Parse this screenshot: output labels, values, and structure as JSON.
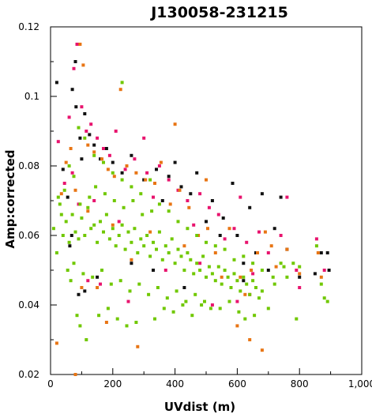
{
  "chart_data": {
    "type": "scatter",
    "title": "J130058-231215",
    "xlabel": "UVdist (m)",
    "ylabel": "Amp:corrected",
    "xlim": [
      0,
      1000
    ],
    "ylim": [
      0.02,
      0.12
    ],
    "xticks": [
      0,
      200,
      400,
      600,
      800,
      1000
    ],
    "xtick_labels": [
      "0",
      "200",
      "400",
      "600",
      "800",
      "1,000"
    ],
    "yticks": [
      0.02,
      0.04,
      0.06,
      0.08,
      0.1,
      0.12
    ],
    "ytick_labels": [
      "0.02",
      "0.04",
      "0.06",
      "0.08",
      "0.1",
      "0.12"
    ],
    "grid": false,
    "series": [
      {
        "color": "#111111",
        "points": [
          [
            20,
            0.104
          ],
          [
            40,
            0.079
          ],
          [
            55,
            0.071
          ],
          [
            70,
            0.102
          ],
          [
            82,
            0.097
          ],
          [
            95,
            0.088
          ],
          [
            110,
            0.095
          ],
          [
            125,
            0.089
          ],
          [
            140,
            0.086
          ],
          [
            160,
            0.082
          ],
          [
            180,
            0.085
          ],
          [
            200,
            0.081
          ],
          [
            230,
            0.078
          ],
          [
            260,
            0.083
          ],
          [
            300,
            0.076
          ],
          [
            340,
            0.079
          ],
          [
            360,
            0.07
          ],
          [
            380,
            0.077
          ],
          [
            400,
            0.081
          ],
          [
            420,
            0.074
          ],
          [
            450,
            0.072
          ],
          [
            470,
            0.078
          ],
          [
            500,
            0.064
          ],
          [
            520,
            0.07
          ],
          [
            555,
            0.065
          ],
          [
            585,
            0.075
          ],
          [
            620,
            0.052
          ],
          [
            640,
            0.068
          ],
          [
            660,
            0.055
          ],
          [
            680,
            0.072
          ],
          [
            700,
            0.05
          ],
          [
            720,
            0.062
          ],
          [
            740,
            0.071
          ],
          [
            760,
            0.056
          ],
          [
            800,
            0.048
          ],
          [
            850,
            0.049
          ],
          [
            870,
            0.055
          ],
          [
            890,
            0.055
          ],
          [
            895,
            0.05
          ],
          [
            110,
            0.044
          ],
          [
            90,
            0.043
          ],
          [
            150,
            0.048
          ],
          [
            260,
            0.052
          ],
          [
            330,
            0.05
          ],
          [
            430,
            0.045
          ],
          [
            620,
            0.047
          ],
          [
            600,
            0.06
          ],
          [
            545,
            0.06
          ],
          [
            80,
            0.11
          ],
          [
            100,
            0.082
          ],
          [
            68,
            0.06
          ],
          [
            62,
            0.057
          ]
        ]
      },
      {
        "color": "#e8146e",
        "points": [
          [
            25,
            0.087
          ],
          [
            45,
            0.075
          ],
          [
            60,
            0.094
          ],
          [
            75,
            0.108
          ],
          [
            85,
            0.115
          ],
          [
            100,
            0.097
          ],
          [
            115,
            0.09
          ],
          [
            130,
            0.092
          ],
          [
            150,
            0.088
          ],
          [
            170,
            0.085
          ],
          [
            190,
            0.083
          ],
          [
            210,
            0.09
          ],
          [
            240,
            0.079
          ],
          [
            270,
            0.082
          ],
          [
            310,
            0.078
          ],
          [
            350,
            0.08
          ],
          [
            380,
            0.076
          ],
          [
            410,
            0.073
          ],
          [
            440,
            0.07
          ],
          [
            460,
            0.063
          ],
          [
            480,
            0.072
          ],
          [
            510,
            0.068
          ],
          [
            540,
            0.066
          ],
          [
            560,
            0.059
          ],
          [
            590,
            0.062
          ],
          [
            610,
            0.071
          ],
          [
            630,
            0.058
          ],
          [
            650,
            0.049
          ],
          [
            670,
            0.061
          ],
          [
            700,
            0.055
          ],
          [
            740,
            0.06
          ],
          [
            760,
            0.071
          ],
          [
            790,
            0.05
          ],
          [
            800,
            0.045
          ],
          [
            855,
            0.059
          ],
          [
            880,
            0.05
          ],
          [
            600,
            0.041
          ],
          [
            640,
            0.043
          ],
          [
            520,
            0.04
          ],
          [
            370,
            0.05
          ],
          [
            250,
            0.041
          ],
          [
            160,
            0.046
          ],
          [
            120,
            0.047
          ],
          [
            70,
            0.078
          ],
          [
            300,
            0.088
          ],
          [
            330,
            0.071
          ],
          [
            480,
            0.052
          ],
          [
            220,
            0.064
          ],
          [
            140,
            0.07
          ],
          [
            90,
            0.069
          ]
        ]
      },
      {
        "color": "#e87514",
        "points": [
          [
            20,
            0.029
          ],
          [
            35,
            0.072
          ],
          [
            50,
            0.081
          ],
          [
            65,
            0.085
          ],
          [
            80,
            0.02
          ],
          [
            95,
            0.115
          ],
          [
            105,
            0.109
          ],
          [
            120,
            0.086
          ],
          [
            140,
            0.084
          ],
          [
            165,
            0.082
          ],
          [
            185,
            0.079
          ],
          [
            205,
            0.077
          ],
          [
            225,
            0.102
          ],
          [
            245,
            0.08
          ],
          [
            275,
            0.078
          ],
          [
            305,
            0.076
          ],
          [
            335,
            0.075
          ],
          [
            355,
            0.081
          ],
          [
            385,
            0.069
          ],
          [
            415,
            0.073
          ],
          [
            445,
            0.068
          ],
          [
            475,
            0.06
          ],
          [
            505,
            0.062
          ],
          [
            530,
            0.055
          ],
          [
            550,
            0.048
          ],
          [
            575,
            0.062
          ],
          [
            610,
            0.048
          ],
          [
            625,
            0.043
          ],
          [
            645,
            0.05
          ],
          [
            665,
            0.055
          ],
          [
            690,
            0.061
          ],
          [
            710,
            0.057
          ],
          [
            725,
            0.051
          ],
          [
            760,
            0.056
          ],
          [
            800,
            0.049
          ],
          [
            860,
            0.055
          ],
          [
            870,
            0.048
          ],
          [
            600,
            0.034
          ],
          [
            640,
            0.03
          ],
          [
            680,
            0.027
          ],
          [
            280,
            0.028
          ],
          [
            180,
            0.035
          ],
          [
            150,
            0.045
          ],
          [
            100,
            0.045
          ],
          [
            400,
            0.092
          ],
          [
            500,
            0.076
          ],
          [
            260,
            0.053
          ],
          [
            200,
            0.063
          ],
          [
            120,
            0.067
          ],
          [
            80,
            0.073
          ],
          [
            320,
            0.061
          ],
          [
            430,
            0.057
          ]
        ]
      },
      {
        "color": "#70c800",
        "points": [
          [
            10,
            0.062
          ],
          [
            20,
            0.055
          ],
          [
            30,
            0.069
          ],
          [
            40,
            0.06
          ],
          [
            50,
            0.064
          ],
          [
            60,
            0.058
          ],
          [
            70,
            0.066
          ],
          [
            80,
            0.061
          ],
          [
            90,
            0.059
          ],
          [
            100,
            0.065
          ],
          [
            110,
            0.06
          ],
          [
            120,
            0.068
          ],
          [
            130,
            0.062
          ],
          [
            140,
            0.063
          ],
          [
            150,
            0.058
          ],
          [
            160,
            0.064
          ],
          [
            170,
            0.061
          ],
          [
            180,
            0.066
          ],
          [
            190,
            0.059
          ],
          [
            200,
            0.062
          ],
          [
            210,
            0.057
          ],
          [
            220,
            0.06
          ],
          [
            230,
            0.063
          ],
          [
            240,
            0.056
          ],
          [
            250,
            0.061
          ],
          [
            260,
            0.058
          ],
          [
            270,
            0.062
          ],
          [
            280,
            0.055
          ],
          [
            290,
            0.059
          ],
          [
            300,
            0.057
          ],
          [
            310,
            0.06
          ],
          [
            320,
            0.054
          ],
          [
            330,
            0.058
          ],
          [
            340,
            0.056
          ],
          [
            350,
            0.061
          ],
          [
            360,
            0.053
          ],
          [
            370,
            0.057
          ],
          [
            380,
            0.055
          ],
          [
            390,
            0.059
          ],
          [
            400,
            0.052
          ],
          [
            410,
            0.056
          ],
          [
            420,
            0.054
          ],
          [
            430,
            0.05
          ],
          [
            440,
            0.055
          ],
          [
            450,
            0.053
          ],
          [
            460,
            0.049
          ],
          [
            470,
            0.052
          ],
          [
            480,
            0.05
          ],
          [
            490,
            0.054
          ],
          [
            500,
            0.048
          ],
          [
            510,
            0.051
          ],
          [
            520,
            0.049
          ],
          [
            530,
            0.047
          ],
          [
            540,
            0.051
          ],
          [
            550,
            0.046
          ],
          [
            560,
            0.05
          ],
          [
            570,
            0.048
          ],
          [
            580,
            0.045
          ],
          [
            590,
            0.049
          ],
          [
            600,
            0.047
          ],
          [
            610,
            0.044
          ],
          [
            620,
            0.048
          ],
          [
            630,
            0.046
          ],
          [
            640,
            0.043
          ],
          [
            650,
            0.047
          ],
          [
            660,
            0.045
          ],
          [
            670,
            0.042
          ],
          [
            680,
            0.044
          ],
          [
            700,
            0.039
          ],
          [
            720,
            0.046
          ],
          [
            740,
            0.052
          ],
          [
            760,
            0.048
          ],
          [
            780,
            0.052
          ],
          [
            790,
            0.036
          ],
          [
            800,
            0.051
          ],
          [
            855,
            0.057
          ],
          [
            870,
            0.046
          ],
          [
            880,
            0.042
          ],
          [
            890,
            0.041
          ],
          [
            95,
            0.069
          ],
          [
            125,
            0.071
          ],
          [
            145,
            0.074
          ],
          [
            175,
            0.072
          ],
          [
            205,
            0.07
          ],
          [
            235,
            0.068
          ],
          [
            265,
            0.07
          ],
          [
            295,
            0.066
          ],
          [
            325,
            0.067
          ],
          [
            85,
            0.037
          ],
          [
            95,
            0.034
          ],
          [
            115,
            0.03
          ],
          [
            155,
            0.037
          ],
          [
            185,
            0.039
          ],
          [
            215,
            0.036
          ],
          [
            245,
            0.034
          ],
          [
            275,
            0.035
          ],
          [
            335,
            0.036
          ],
          [
            365,
            0.039
          ],
          [
            395,
            0.038
          ],
          [
            425,
            0.04
          ],
          [
            455,
            0.037
          ],
          [
            485,
            0.04
          ],
          [
            515,
            0.039
          ],
          [
            545,
            0.039
          ],
          [
            575,
            0.041
          ],
          [
            605,
            0.038
          ],
          [
            625,
            0.036
          ],
          [
            655,
            0.037
          ],
          [
            110,
            0.088
          ],
          [
            140,
            0.083
          ],
          [
            170,
            0.081
          ],
          [
            200,
            0.078
          ],
          [
            230,
            0.076
          ],
          [
            260,
            0.074
          ],
          [
            290,
            0.072
          ],
          [
            320,
            0.076
          ],
          [
            350,
            0.069
          ],
          [
            380,
            0.067
          ],
          [
            410,
            0.064
          ],
          [
            440,
            0.062
          ],
          [
            470,
            0.06
          ],
          [
            500,
            0.058
          ],
          [
            530,
            0.057
          ],
          [
            560,
            0.056
          ],
          [
            590,
            0.053
          ],
          [
            620,
            0.054
          ],
          [
            650,
            0.052
          ],
          [
            680,
            0.05
          ],
          [
            715,
            0.048
          ],
          [
            750,
            0.051
          ],
          [
            230,
            0.104
          ],
          [
            90,
            0.091
          ],
          [
            60,
            0.08
          ],
          [
            75,
            0.077
          ],
          [
            45,
            0.073
          ],
          [
            35,
            0.066
          ],
          [
            25,
            0.071
          ],
          [
            55,
            0.05
          ],
          [
            65,
            0.047
          ],
          [
            75,
            0.052
          ],
          [
            105,
            0.049
          ],
          [
            135,
            0.048
          ],
          [
            165,
            0.05
          ],
          [
            195,
            0.046
          ],
          [
            225,
            0.047
          ],
          [
            255,
            0.044
          ],
          [
            285,
            0.046
          ],
          [
            315,
            0.043
          ],
          [
            345,
            0.045
          ],
          [
            375,
            0.042
          ],
          [
            405,
            0.044
          ],
          [
            435,
            0.041
          ],
          [
            465,
            0.043
          ],
          [
            495,
            0.041
          ]
        ]
      }
    ]
  }
}
